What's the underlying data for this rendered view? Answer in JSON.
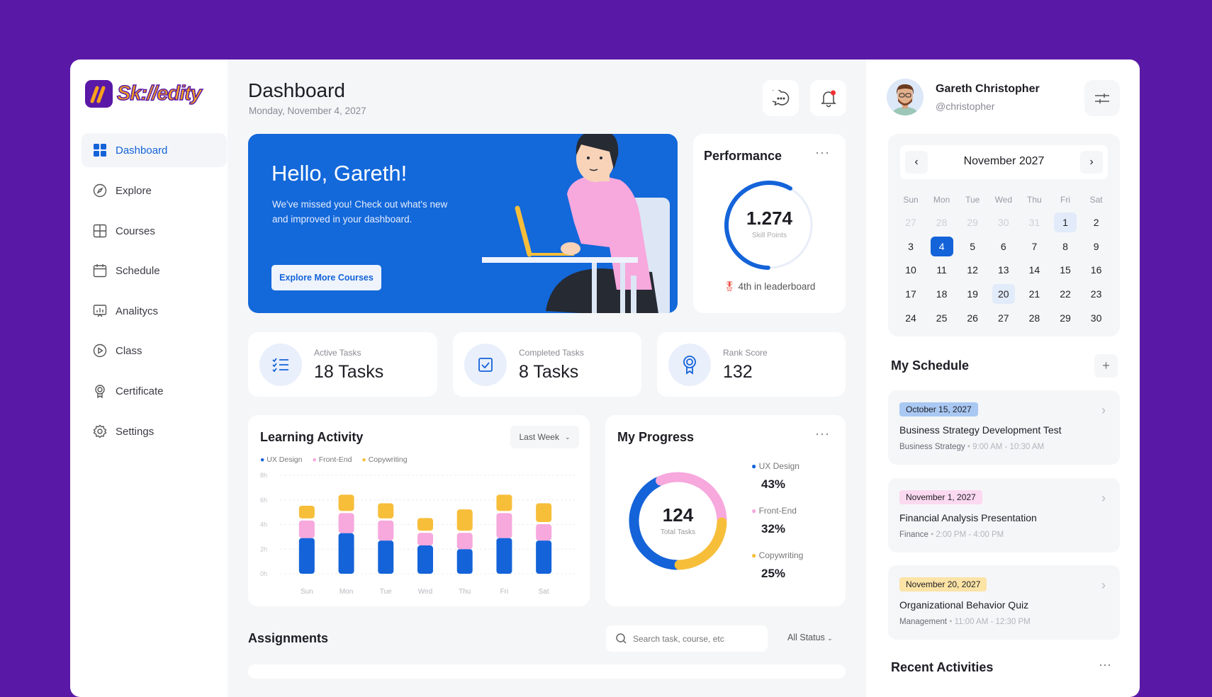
{
  "brand": {
    "name": "Sk://edity",
    "colors": {
      "background": "#5A18A6",
      "primary": "#1463D9",
      "pink": "#F7A8DD",
      "yellow": "#F7BE3A"
    }
  },
  "sidebar": {
    "items": [
      {
        "label": "Dashboard",
        "icon": "grid-icon",
        "active": true
      },
      {
        "label": "Explore",
        "icon": "compass-icon"
      },
      {
        "label": "Courses",
        "icon": "courses-icon"
      },
      {
        "label": "Schedule",
        "icon": "calendar-icon"
      },
      {
        "label": "Analitycs",
        "icon": "analytics-icon"
      },
      {
        "label": "Class",
        "icon": "play-icon"
      },
      {
        "label": "Certificate",
        "icon": "certificate-icon"
      },
      {
        "label": "Settings",
        "icon": "gear-icon"
      }
    ]
  },
  "header": {
    "title": "Dashboard",
    "date": "Monday, November 4, 2027"
  },
  "banner": {
    "greeting": "Hello, Gareth!",
    "message_line1": "We've missed you! Check out what's new",
    "message_line2": "and improved in your dashboard.",
    "button": "Explore More Courses"
  },
  "performance": {
    "title": "Performance",
    "points": "1.274",
    "points_label": "Skill Points",
    "leaderboard": "4th in leaderboard",
    "progress": 0.58
  },
  "stats": [
    {
      "label": "Active Tasks",
      "value": "18 Tasks",
      "icon": "task-list-icon"
    },
    {
      "label": "Completed Tasks",
      "value": "8 Tasks",
      "icon": "checkbox-icon"
    },
    {
      "label": "Rank Score",
      "value": "132",
      "icon": "award-icon"
    }
  ],
  "learning_activity": {
    "title": "Learning Activity",
    "filter": "Last Week"
  },
  "chart_data": [
    {
      "type": "bar",
      "stacked": true,
      "title": "Learning Activity",
      "categories": [
        "Sun",
        "Mon",
        "Tue",
        "Wed",
        "Thu",
        "Fri",
        "Sat"
      ],
      "yticks": [
        "0h",
        "2h",
        "4h",
        "6h",
        "8h"
      ],
      "ylim": [
        0,
        8
      ],
      "grid": true,
      "legend": "top-left",
      "series": [
        {
          "name": "UX Design",
          "color": "#1463D9",
          "values": [
            2.9,
            3.3,
            2.7,
            2.3,
            2.0,
            2.9,
            2.7
          ]
        },
        {
          "name": "Front-End",
          "color": "#F7A8DD",
          "values": [
            1.6,
            1.8,
            1.8,
            1.2,
            1.5,
            2.2,
            1.5
          ]
        },
        {
          "name": "Copywriting",
          "color": "#F7BE3A",
          "values": [
            1.2,
            1.5,
            1.4,
            1.2,
            1.9,
            1.5,
            1.7
          ]
        }
      ]
    },
    {
      "type": "pie",
      "donut": true,
      "title": "My Progress",
      "center_value": "124",
      "center_label": "Total Tasks",
      "slices": [
        {
          "name": "UX Design",
          "value": 43,
          "label": "43%",
          "color": "#1463D9"
        },
        {
          "name": "Front-End",
          "value": 32,
          "label": "32%",
          "color": "#F7A8DD"
        },
        {
          "name": "Copywriting",
          "value": 25,
          "label": "25%",
          "color": "#F7BE3A"
        }
      ]
    }
  ],
  "assignments": {
    "title": "Assignments",
    "search_placeholder": "Search task, course, etc",
    "status_filter": "All Status"
  },
  "profile": {
    "name": "Gareth Christopher",
    "handle": "@christopher"
  },
  "calendar": {
    "month": "November 2027",
    "weekdays": [
      "Sun",
      "Mon",
      "Tue",
      "Wed",
      "Thu",
      "Fri",
      "Sat"
    ],
    "days": [
      [
        "27",
        "28",
        "29",
        "30",
        "31",
        "1",
        "2"
      ],
      [
        "3",
        "4",
        "5",
        "6",
        "7",
        "8",
        "9"
      ],
      [
        "10",
        "11",
        "12",
        "13",
        "14",
        "15",
        "16"
      ],
      [
        "17",
        "18",
        "19",
        "20",
        "21",
        "22",
        "23"
      ],
      [
        "24",
        "25",
        "26",
        "27",
        "28",
        "29",
        "30"
      ]
    ],
    "selected": "4",
    "highlighted": [
      "1",
      "20"
    ]
  },
  "schedule": {
    "title": "My Schedule",
    "items": [
      {
        "date": "October 15, 2027",
        "title": "Business Strategy Development Test",
        "category": "Business Strategy",
        "time": "9:00 AM - 10:30 AM",
        "tag_color": "#A9C8F2"
      },
      {
        "date": "November 1, 2027",
        "title": "Financial Analysis Presentation",
        "category": "Finance",
        "time": "2:00 PM - 4:00 PM",
        "tag_color": "#FBD9F0"
      },
      {
        "date": "November 20, 2027",
        "title": "Organizational Behavior Quiz",
        "category": "Management",
        "time": "11:00 AM - 12:30 PM",
        "tag_color": "#FCE3A6"
      }
    ]
  },
  "recent": {
    "title": "Recent Activities"
  }
}
